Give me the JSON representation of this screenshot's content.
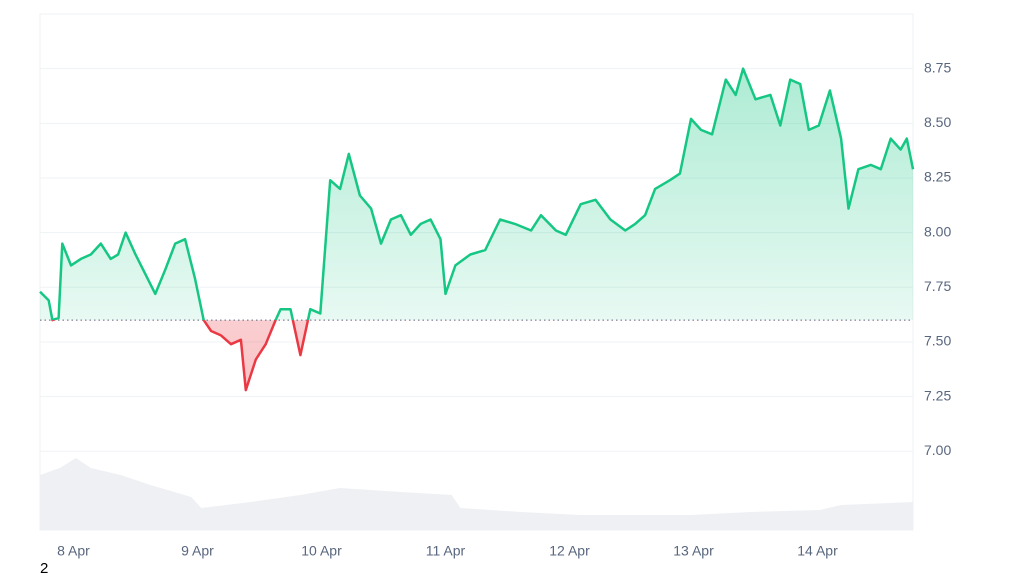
{
  "chart_data": {
    "type": "line",
    "x": [
      7.73,
      7.8,
      7.83,
      7.88,
      7.91,
      7.98,
      8.06,
      8.14,
      8.22,
      8.3,
      8.36,
      8.42,
      8.5,
      8.58,
      8.66,
      8.74,
      8.82,
      8.9,
      8.98,
      9.05,
      9.11,
      9.19,
      9.27,
      9.35,
      9.39,
      9.47,
      9.55,
      9.63,
      9.67,
      9.75,
      9.83,
      9.91,
      9.99,
      10.07,
      10.15,
      10.22,
      10.31,
      10.4,
      10.48,
      10.56,
      10.64,
      10.72,
      10.8,
      10.88,
      10.96,
      11.0,
      11.08,
      11.2,
      11.32,
      11.44,
      11.56,
      11.69,
      11.77,
      11.89,
      11.97,
      12.09,
      12.21,
      12.33,
      12.45,
      12.53,
      12.61,
      12.69,
      12.81,
      12.89,
      12.98,
      13.06,
      13.15,
      13.26,
      13.34,
      13.4,
      13.5,
      13.62,
      13.7,
      13.78,
      13.86,
      13.93,
      14.01,
      14.1,
      14.19,
      14.25,
      14.33,
      14.43,
      14.51,
      14.59,
      14.67,
      14.72,
      14.77
    ],
    "series": [
      {
        "color": "#16c784",
        "values": [
          7.73,
          7.69,
          7.6,
          7.61,
          7.95,
          7.85,
          7.88,
          7.9,
          7.95,
          7.88,
          7.9,
          8.0,
          7.9,
          7.81,
          7.72,
          7.83,
          7.95,
          7.97,
          7.79,
          7.6,
          7.55,
          7.53,
          7.49,
          7.51,
          7.28,
          7.42,
          7.49,
          7.6,
          7.65,
          7.65,
          7.44,
          7.65,
          7.63,
          8.24,
          8.2,
          8.36,
          8.17,
          8.11,
          7.95,
          8.06,
          8.08,
          7.99,
          8.04,
          8.06,
          7.97,
          7.72,
          7.85,
          7.9,
          7.92,
          8.06,
          8.04,
          8.01,
          8.08,
          8.01,
          7.99,
          8.13,
          8.15,
          8.06,
          8.01,
          8.04,
          8.08,
          8.2,
          8.24,
          8.27,
          8.52,
          8.47,
          8.45,
          8.7,
          8.63,
          8.75,
          8.61,
          8.63,
          8.49,
          8.7,
          8.68,
          8.47,
          8.49,
          8.65,
          8.43,
          8.11,
          8.29,
          8.31,
          8.29,
          8.43,
          8.38,
          8.43,
          8.29
        ]
      }
    ],
    "negative_color": "#ea3943",
    "baseline": 7.6,
    "volume": {
      "color": "#eef0f3",
      "x": [
        7.73,
        7.89,
        8.02,
        8.14,
        8.38,
        8.62,
        8.95,
        9.03,
        9.43,
        9.83,
        10.15,
        10.64,
        11.05,
        11.12,
        11.61,
        12.09,
        12.98,
        13.46,
        14.02,
        14.19,
        14.77
      ],
      "values": [
        55,
        62,
        72,
        62,
        55,
        45,
        33,
        22,
        28,
        35,
        42,
        38,
        35,
        22,
        18,
        15,
        15,
        18,
        20,
        25,
        28
      ]
    },
    "xlim": [
      7.73,
      14.77
    ],
    "xticks": [
      {
        "value": 8,
        "label": "8 Apr"
      },
      {
        "value": 9,
        "label": "9 Apr"
      },
      {
        "value": 10,
        "label": "10 Apr"
      },
      {
        "value": 11,
        "label": "11 Apr"
      },
      {
        "value": 12,
        "label": "12 Apr"
      },
      {
        "value": 13,
        "label": "13 Apr"
      },
      {
        "value": 14,
        "label": "14 Apr"
      }
    ],
    "ylim": [
      6.64,
      9.0
    ],
    "yticks": [
      {
        "value": 7,
        "label": "7.00"
      },
      7.25,
      {
        "value": 7.5,
        "label": "7.50"
      },
      7.75,
      {
        "value": 8,
        "label": "8.00"
      },
      8.25,
      {
        "value": 8.5,
        "label": "8.50"
      },
      8.75
    ],
    "y2lim": [
      0,
      100
    ],
    "grid": true,
    "footnote": "2"
  }
}
